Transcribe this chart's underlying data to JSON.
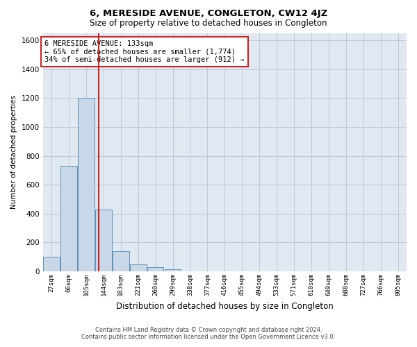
{
  "title": "6, MERESIDE AVENUE, CONGLETON, CW12 4JZ",
  "subtitle": "Size of property relative to detached houses in Congleton",
  "xlabel": "Distribution of detached houses by size in Congleton",
  "ylabel": "Number of detached properties",
  "bar_labels": [
    "27sqm",
    "66sqm",
    "105sqm",
    "144sqm",
    "183sqm",
    "221sqm",
    "260sqm",
    "299sqm",
    "338sqm",
    "377sqm",
    "416sqm",
    "455sqm",
    "494sqm",
    "533sqm",
    "571sqm",
    "610sqm",
    "649sqm",
    "688sqm",
    "727sqm",
    "766sqm",
    "805sqm"
  ],
  "bar_values": [
    100,
    730,
    1200,
    430,
    140,
    50,
    30,
    15,
    0,
    0,
    0,
    0,
    0,
    0,
    0,
    0,
    0,
    0,
    0,
    0,
    0
  ],
  "bar_color": "#c8d8e8",
  "bar_edge_color": "#6090b8",
  "grid_color": "#c0c8d8",
  "background_color": "#e0e8f2",
  "vline_x": 2.72,
  "vline_color": "#cc2222",
  "annotation_text": "6 MERESIDE AVENUE: 133sqm\n← 65% of detached houses are smaller (1,774)\n34% of semi-detached houses are larger (912) →",
  "annotation_box_color": "#ffffff",
  "annotation_box_edge": "#cc2222",
  "ylim": [
    0,
    1650
  ],
  "yticks": [
    0,
    200,
    400,
    600,
    800,
    1000,
    1200,
    1400,
    1600
  ],
  "footer_line1": "Contains HM Land Registry data © Crown copyright and database right 2024.",
  "footer_line2": "Contains public sector information licensed under the Open Government Licence v3.0."
}
